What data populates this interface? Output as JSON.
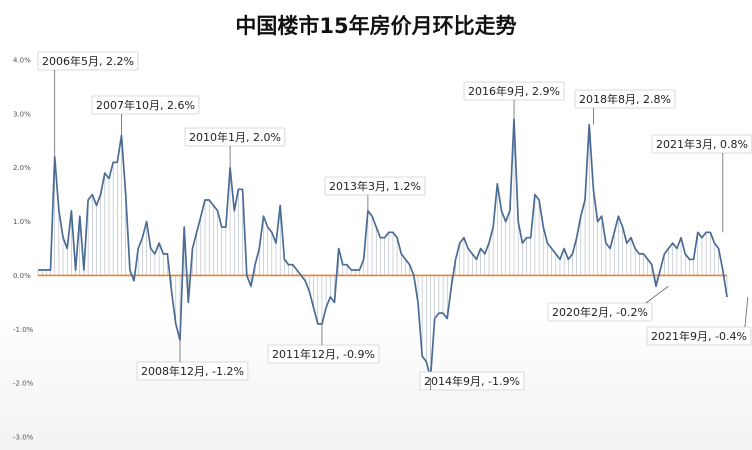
{
  "chart_data": {
    "type": "line",
    "title": "中国楼市15年房价月环比走势",
    "xlabel": "",
    "ylabel": "",
    "ylim": [
      -3.0,
      4.0
    ],
    "y_ticks": [
      "4.0%",
      "3.0%",
      "2.0%",
      "1.0%",
      "0.0%",
      "-1.0%",
      "-2.0%",
      "-3.0%"
    ],
    "grid": false,
    "legend": "none",
    "line_color": "#4a6b94",
    "zero_line_color": "#e8822c",
    "fill_color": "#9aa5b4",
    "series": [
      {
        "values": [
          0.1,
          0.1,
          0.1,
          0.1,
          2.2,
          1.2,
          0.7,
          0.5,
          1.2,
          0.1,
          1.1,
          0.1,
          1.4,
          1.5,
          1.3,
          1.5,
          1.9,
          1.8,
          2.1,
          2.1,
          2.6,
          1.5,
          0.1,
          -0.1,
          0.5,
          0.7,
          1.0,
          0.5,
          0.4,
          0.6,
          0.4,
          0.4,
          -0.3,
          -0.9,
          -1.2,
          0.9,
          -0.5,
          0.5,
          0.8,
          1.1,
          1.4,
          1.4,
          1.3,
          1.2,
          0.9,
          0.9,
          2.0,
          1.2,
          1.6,
          1.6,
          0.0,
          -0.2,
          0.2,
          0.5,
          1.1,
          0.9,
          0.8,
          0.6,
          1.3,
          0.3,
          0.2,
          0.2,
          0.1,
          0.0,
          -0.1,
          -0.3,
          -0.6,
          -0.9,
          -0.9,
          -0.6,
          -0.4,
          -0.5,
          0.5,
          0.2,
          0.2,
          0.1,
          0.1,
          0.1,
          0.3,
          1.2,
          1.1,
          0.9,
          0.7,
          0.7,
          0.8,
          0.8,
          0.7,
          0.4,
          0.3,
          0.2,
          0.0,
          -0.5,
          -1.5,
          -1.6,
          -1.9,
          -0.8,
          -0.7,
          -0.7,
          -0.8,
          -0.2,
          0.3,
          0.6,
          0.7,
          0.5,
          0.4,
          0.3,
          0.5,
          0.4,
          0.6,
          0.9,
          1.7,
          1.2,
          1.0,
          1.2,
          2.9,
          1.0,
          0.6,
          0.7,
          0.7,
          1.5,
          1.4,
          0.9,
          0.6,
          0.5,
          0.4,
          0.3,
          0.5,
          0.3,
          0.4,
          0.7,
          1.1,
          1.4,
          2.8,
          1.6,
          1.0,
          1.1,
          0.6,
          0.5,
          0.8,
          1.1,
          0.9,
          0.6,
          0.7,
          0.5,
          0.4,
          0.4,
          0.3,
          0.2,
          -0.2,
          0.1,
          0.4,
          0.5,
          0.6,
          0.5,
          0.7,
          0.4,
          0.3,
          0.3,
          0.8,
          0.7,
          0.8,
          0.8,
          0.6,
          0.5,
          0.1,
          -0.4
        ]
      }
    ],
    "annotations": [
      {
        "label": "2006年5月, 2.2%",
        "index": 4,
        "value": 2.2
      },
      {
        "label": "2007年10月, 2.6%",
        "index": 20,
        "value": 2.6
      },
      {
        "label": "2008年12月, -1.2%",
        "index": 34,
        "value": -1.2
      },
      {
        "label": "2010年1月, 2.0%",
        "index": 46,
        "value": 2.0
      },
      {
        "label": "2011年12月, -0.9%",
        "index": 68,
        "value": -0.9
      },
      {
        "label": "2013年3月, 1.2%",
        "index": 79,
        "value": 1.2
      },
      {
        "label": "2014年9月, -1.9%",
        "index": 94,
        "value": -1.9
      },
      {
        "label": "2016年9月, 2.9%",
        "index": 114,
        "value": 2.9
      },
      {
        "label": "2018年8月, 2.8%",
        "index": 133,
        "value": 2.8
      },
      {
        "label": "2020年2月, -0.2%",
        "index": 151,
        "value": -0.2
      },
      {
        "label": "2021年3月, 0.8%",
        "index": 164,
        "value": 0.8
      },
      {
        "label": "2021年9月, -0.4%",
        "index": 170,
        "value": -0.4
      }
    ]
  }
}
